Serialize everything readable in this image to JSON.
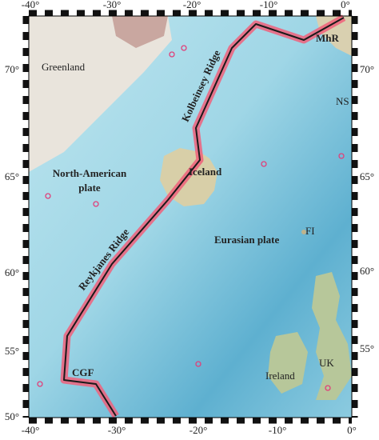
{
  "map": {
    "longitude_ticks_top": [
      "-40°",
      "-30°",
      "-20°",
      "-10°",
      "0°"
    ],
    "longitude_ticks_bottom": [
      "-40°",
      "-30°",
      "-20°",
      "-10°",
      "0°"
    ],
    "latitude_ticks_left": [
      "70°",
      "65°",
      "60°",
      "55°",
      "50°"
    ],
    "latitude_ticks_right": [
      "70°",
      "65°",
      "60°",
      "55°"
    ],
    "labels": {
      "greenland": "Greenland",
      "kolbeinsey": "Kolbeinsey Ridge",
      "mhr": "MhR",
      "ns": "NS",
      "north_american": [
        "North-American",
        "plate"
      ],
      "iceland": "Iceland",
      "fi": "FI",
      "eurasian": "Eurasian plate",
      "reykjanes": "Reykjanes Ridge",
      "cgf": "CGF",
      "ireland": "Ireland",
      "uk": "UK"
    }
  }
}
